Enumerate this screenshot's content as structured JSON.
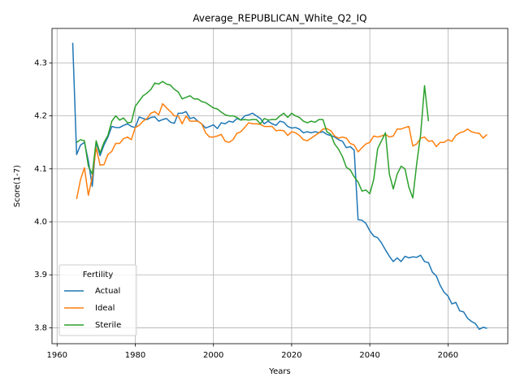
{
  "chart_data": {
    "type": "line",
    "title": "Average_REPUBLICAN_White_Q2_IQ",
    "x_label": "Years",
    "y_label": "Score(1-7)",
    "x": [
      1964,
      1965,
      1966,
      1967,
      1968,
      1969,
      1970,
      1971,
      1972,
      1973,
      1974,
      1975,
      1976,
      1977,
      1978,
      1979,
      1980,
      1981,
      1982,
      1983,
      1984,
      1985,
      1986,
      1987,
      1988,
      1989,
      1990,
      1991,
      1992,
      1993,
      1994,
      1995,
      1996,
      1997,
      1998,
      1999,
      2000,
      2001,
      2002,
      2003,
      2004,
      2005,
      2006,
      2007,
      2008,
      2009,
      2010,
      2011,
      2012,
      2013,
      2014,
      2015,
      2016,
      2017,
      2018,
      2019,
      2020,
      2021,
      2022,
      2023,
      2024,
      2025,
      2026,
      2027,
      2028,
      2029,
      2030,
      2031,
      2032,
      2033,
      2034,
      2035,
      2036,
      2037,
      2038,
      2039,
      2040,
      2041,
      2042,
      2043,
      2044,
      2045,
      2046,
      2047,
      2048,
      2049,
      2050,
      2051,
      2052,
      2053,
      2054,
      2055,
      2056,
      2057,
      2058,
      2059,
      2060,
      2061,
      2062,
      2063,
      2064,
      2065,
      2066,
      2067,
      2068,
      2069,
      2070
    ],
    "series": [
      {
        "name": "Actual",
        "color": "#1f77b4",
        "values": [
          4.338,
          4.127,
          4.145,
          4.15,
          4.115,
          4.067,
          4.15,
          4.125,
          4.145,
          4.16,
          4.18,
          4.178,
          4.178,
          4.182,
          4.185,
          4.18,
          4.178,
          4.198,
          4.195,
          4.193,
          4.197,
          4.198,
          4.19,
          4.193,
          4.195,
          4.188,
          4.186,
          4.205,
          4.205,
          4.208,
          4.195,
          4.197,
          4.19,
          4.185,
          4.177,
          4.18,
          4.183,
          4.176,
          4.187,
          4.185,
          4.19,
          4.188,
          4.195,
          4.192,
          4.2,
          4.202,
          4.205,
          4.2,
          4.195,
          4.185,
          4.19,
          4.185,
          4.182,
          4.19,
          4.188,
          4.18,
          4.177,
          4.178,
          4.175,
          4.168,
          4.17,
          4.168,
          4.17,
          4.168,
          4.17,
          4.165,
          4.163,
          4.16,
          4.155,
          4.152,
          4.14,
          4.142,
          4.135,
          4.004,
          4.003,
          3.997,
          3.983,
          3.973,
          3.97,
          3.96,
          3.947,
          3.935,
          3.925,
          3.932,
          3.925,
          3.935,
          3.932,
          3.934,
          3.933,
          3.937,
          3.925,
          3.923,
          3.905,
          3.898,
          3.88,
          3.867,
          3.86,
          3.845,
          3.848,
          3.832,
          3.83,
          3.818,
          3.812,
          3.808,
          3.797,
          3.801,
          3.799
        ]
      },
      {
        "name": "Ideal",
        "color": "#ff7f0e",
        "values": [
          null,
          4.043,
          4.08,
          4.102,
          4.05,
          4.085,
          4.14,
          4.107,
          4.108,
          4.127,
          4.133,
          4.148,
          4.148,
          4.157,
          4.16,
          4.155,
          4.178,
          4.182,
          4.19,
          4.195,
          4.205,
          4.208,
          4.202,
          4.223,
          4.215,
          4.208,
          4.2,
          4.2,
          4.185,
          4.2,
          4.19,
          4.19,
          4.19,
          4.185,
          4.168,
          4.16,
          4.16,
          4.162,
          4.165,
          4.152,
          4.15,
          4.155,
          4.167,
          4.17,
          4.178,
          4.187,
          4.185,
          4.185,
          4.184,
          4.18,
          4.18,
          4.18,
          4.172,
          4.173,
          4.172,
          4.163,
          4.17,
          4.168,
          4.163,
          4.155,
          4.153,
          4.158,
          4.163,
          4.168,
          4.175,
          4.176,
          4.172,
          4.162,
          4.158,
          4.16,
          4.158,
          4.148,
          4.145,
          4.132,
          4.14,
          4.147,
          4.15,
          4.162,
          4.16,
          4.162,
          4.165,
          4.16,
          4.162,
          4.175,
          4.175,
          4.178,
          4.18,
          4.143,
          4.147,
          4.158,
          4.16,
          4.152,
          4.153,
          4.142,
          4.15,
          4.15,
          4.155,
          4.152,
          4.163,
          4.168,
          4.17,
          4.175,
          4.17,
          4.168,
          4.167,
          4.158,
          4.165
        ]
      },
      {
        "name": "Sterile",
        "color": "#2ca02c",
        "values": [
          null,
          4.15,
          4.155,
          4.153,
          4.105,
          4.09,
          4.153,
          4.13,
          4.15,
          4.163,
          4.19,
          4.2,
          4.192,
          4.196,
          4.187,
          4.188,
          4.218,
          4.228,
          4.238,
          4.243,
          4.25,
          4.262,
          4.26,
          4.265,
          4.26,
          4.258,
          4.25,
          4.245,
          4.232,
          4.235,
          4.238,
          4.232,
          4.232,
          4.227,
          4.225,
          4.22,
          4.215,
          4.213,
          4.207,
          4.202,
          4.2,
          4.2,
          4.197,
          4.192,
          4.193,
          4.192,
          4.193,
          4.193,
          4.185,
          4.195,
          4.192,
          4.193,
          4.193,
          4.2,
          4.205,
          4.197,
          4.205,
          4.2,
          4.197,
          4.19,
          4.187,
          4.19,
          4.188,
          4.193,
          4.193,
          4.17,
          4.165,
          4.147,
          4.137,
          4.123,
          4.103,
          4.098,
          4.085,
          4.075,
          4.058,
          4.06,
          4.053,
          4.08,
          4.138,
          4.153,
          4.168,
          4.09,
          4.062,
          4.09,
          4.105,
          4.1,
          4.065,
          4.045,
          4.11,
          4.165,
          4.257,
          4.19,
          null,
          null,
          null,
          null,
          null,
          null,
          null,
          null,
          null,
          null,
          null,
          null,
          null,
          null,
          null
        ]
      }
    ],
    "xlim": [
      1958.7,
      2075.3
    ],
    "xticks": [
      1960,
      1980,
      2000,
      2020,
      2040,
      2060
    ],
    "ylim": [
      3.77,
      4.365
    ],
    "yticks": [
      3.8,
      3.9,
      4.0,
      4.1,
      4.2,
      4.3
    ],
    "grid": true,
    "legend": {
      "title": "Fertility",
      "corner": "lower left"
    }
  }
}
